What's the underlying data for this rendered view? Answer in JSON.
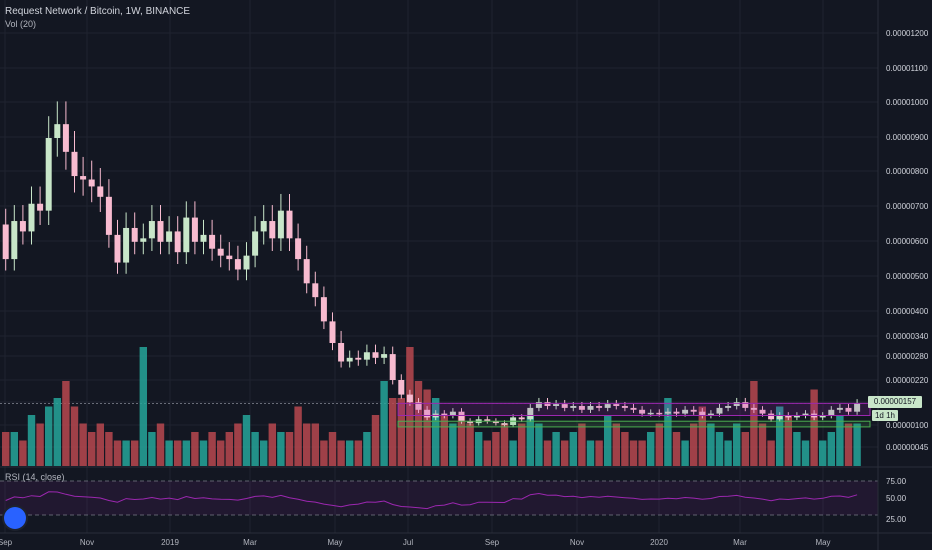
{
  "header": {
    "title": "Request Network / Bitcoin, 1W, BINANCE",
    "volume_label": "Vol (20)",
    "rsi_label": "RSI (14, close)"
  },
  "price_tag": "0.00000157",
  "countdown_tag": "1d 1h",
  "colors": {
    "background": "#131722",
    "up": "#c8e6c9",
    "down": "#f8bbd0",
    "volume_up": "#26a69a",
    "volume_down": "#b8484f",
    "range_box": "#9c27b0",
    "support_box": "#4caf50",
    "rsi_line": "#9c27b0"
  },
  "chart_data": {
    "type": "candlestick",
    "x_ticks": [
      "Sep",
      "Nov",
      "2019",
      "Mar",
      "May",
      "Jul",
      "Sep",
      "Nov",
      "2020",
      "Mar",
      "May"
    ],
    "y_ticks": [
      "0.00001200",
      "0.00001100",
      "0.00001000",
      "0.00000900",
      "0.00000800",
      "0.00000700",
      "0.00000600",
      "0.00000500",
      "0.00000400",
      "0.00000340",
      "0.00000280",
      "0.00000220",
      "0.00000157",
      "0.00000100",
      "0.00000045"
    ],
    "rsi_ticks": [
      "75.00",
      "50.00",
      "25.00"
    ],
    "candles": [
      [
        6.5,
        5.5
      ],
      [
        5.5,
        6.6
      ],
      [
        6.6,
        6.3
      ],
      [
        6.3,
        7.1
      ],
      [
        7.1,
        6.9
      ],
      [
        6.9,
        9.0
      ],
      [
        9.0,
        9.4
      ],
      [
        9.4,
        8.6
      ],
      [
        8.6,
        7.9
      ],
      [
        7.9,
        7.8
      ],
      [
        7.8,
        7.6
      ],
      [
        7.6,
        7.3
      ],
      [
        7.3,
        6.2
      ],
      [
        6.2,
        5.4
      ],
      [
        5.4,
        6.4
      ],
      [
        6.4,
        6.0
      ],
      [
        6.0,
        6.1
      ],
      [
        6.1,
        6.6
      ],
      [
        6.6,
        6.0
      ],
      [
        6.0,
        6.3
      ],
      [
        6.3,
        5.7
      ],
      [
        5.7,
        6.7
      ],
      [
        6.7,
        6.0
      ],
      [
        6.0,
        6.2
      ],
      [
        6.2,
        5.8
      ],
      [
        5.8,
        5.6
      ],
      [
        5.6,
        5.5
      ],
      [
        5.5,
        5.2
      ],
      [
        5.2,
        5.6
      ],
      [
        5.6,
        6.3
      ],
      [
        6.3,
        6.6
      ],
      [
        6.6,
        6.1
      ],
      [
        6.1,
        6.9
      ],
      [
        6.9,
        6.1
      ],
      [
        6.1,
        5.5
      ],
      [
        5.5,
        4.8
      ],
      [
        4.8,
        4.4
      ],
      [
        4.4,
        3.7
      ],
      [
        3.7,
        3.2
      ],
      [
        3.2,
        2.7
      ],
      [
        2.7,
        2.8
      ],
      [
        2.8,
        2.75
      ],
      [
        2.75,
        2.95
      ],
      [
        2.95,
        2.8
      ],
      [
        2.8,
        2.9
      ],
      [
        2.9,
        2.2
      ],
      [
        2.2,
        1.8
      ],
      [
        1.8,
        1.6
      ],
      [
        1.6,
        1.4
      ],
      [
        1.4,
        1.2
      ],
      [
        1.2,
        1.3
      ],
      [
        1.3,
        1.25
      ],
      [
        1.25,
        1.35
      ],
      [
        1.35,
        1.1
      ],
      [
        1.1,
        1.05
      ],
      [
        1.05,
        1.15
      ],
      [
        1.15,
        1.1
      ],
      [
        1.1,
        1.05
      ],
      [
        1.05,
        1.0
      ],
      [
        1.0,
        1.2
      ],
      [
        1.2,
        1.15
      ],
      [
        1.15,
        1.45
      ],
      [
        1.45,
        1.6
      ],
      [
        1.6,
        1.5
      ],
      [
        1.5,
        1.55
      ],
      [
        1.55,
        1.45
      ],
      [
        1.45,
        1.5
      ],
      [
        1.5,
        1.4
      ],
      [
        1.4,
        1.5
      ],
      [
        1.5,
        1.45
      ],
      [
        1.45,
        1.55
      ],
      [
        1.55,
        1.5
      ],
      [
        1.5,
        1.45
      ],
      [
        1.45,
        1.4
      ],
      [
        1.4,
        1.3
      ],
      [
        1.3,
        1.32
      ],
      [
        1.32,
        1.3
      ],
      [
        1.3,
        1.35
      ],
      [
        1.35,
        1.3
      ],
      [
        1.3,
        1.4
      ],
      [
        1.4,
        1.35
      ],
      [
        1.35,
        1.25
      ],
      [
        1.25,
        1.3
      ],
      [
        1.3,
        1.45
      ],
      [
        1.45,
        1.5
      ],
      [
        1.5,
        1.6
      ],
      [
        1.6,
        1.45
      ],
      [
        1.45,
        1.4
      ],
      [
        1.4,
        1.3
      ],
      [
        1.3,
        1.15
      ],
      [
        1.15,
        1.25
      ],
      [
        1.25,
        1.2
      ],
      [
        1.2,
        1.25
      ],
      [
        1.25,
        1.3
      ],
      [
        1.3,
        1.2
      ],
      [
        1.2,
        1.25
      ],
      [
        1.25,
        1.4
      ],
      [
        1.4,
        1.45
      ],
      [
        1.45,
        1.35
      ],
      [
        1.35,
        1.57
      ]
    ],
    "volumes": [
      4,
      4,
      3,
      6,
      5,
      7,
      8,
      10,
      7,
      5,
      4,
      5,
      4,
      3,
      3,
      3,
      14,
      4,
      5,
      3,
      3,
      3,
      4,
      3,
      4,
      3,
      4,
      5,
      6,
      4,
      3,
      5,
      4,
      4,
      7,
      5,
      5,
      3,
      4,
      3,
      3,
      3,
      4,
      6,
      10,
      8,
      8,
      14,
      10,
      9,
      8,
      6,
      5,
      6,
      5,
      4,
      3,
      4,
      5,
      3,
      5,
      6,
      5,
      3,
      4,
      3,
      4,
      5,
      3,
      3,
      6,
      5,
      4,
      3,
      3,
      4,
      5,
      8,
      4,
      3,
      5,
      7,
      5,
      4,
      3,
      5,
      4,
      10,
      5,
      3,
      7,
      6,
      4,
      3,
      9,
      3,
      4,
      6,
      5,
      5
    ],
    "range_box": [
      1.25,
      1.57
    ],
    "support_box": [
      0.95,
      1.1
    ]
  }
}
